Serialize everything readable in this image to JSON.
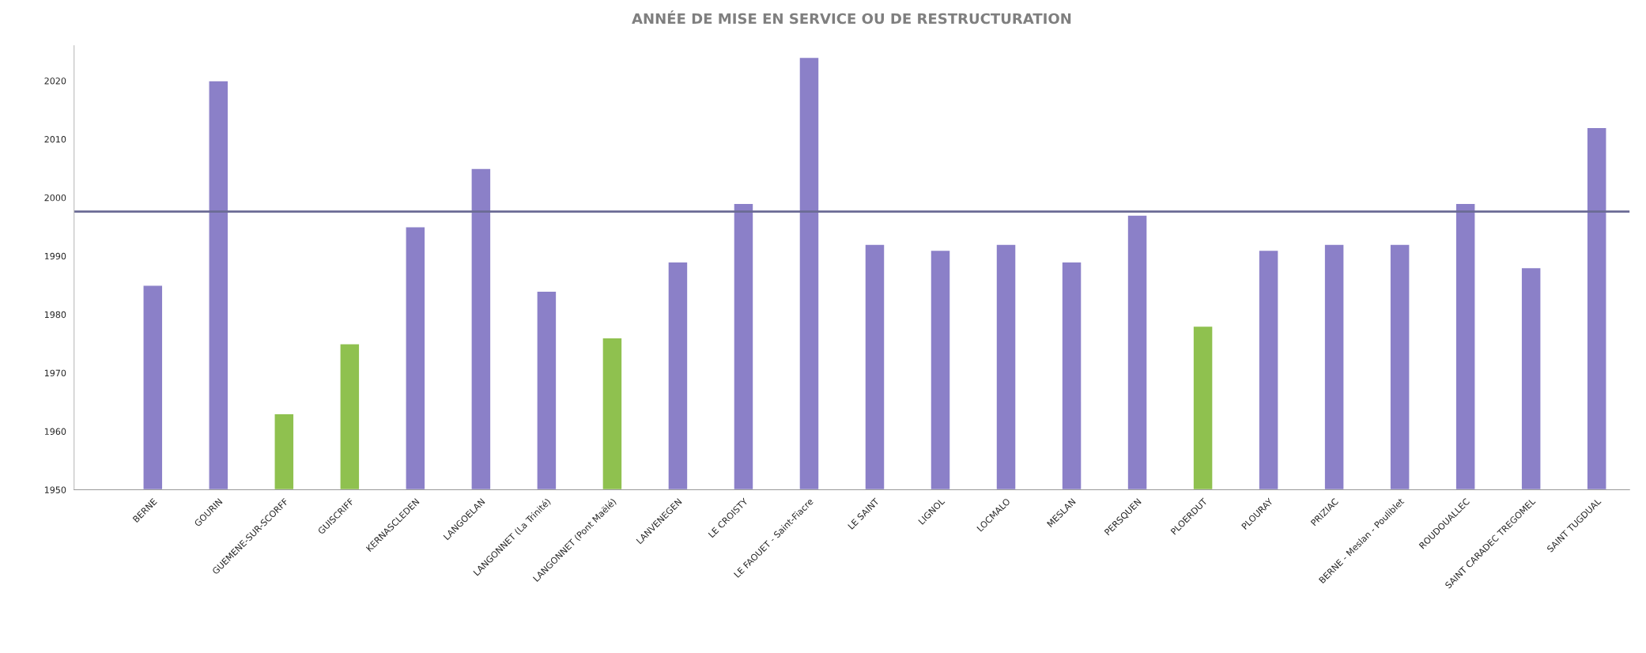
{
  "chart_data": {
    "type": "bar",
    "title": "ANNÉE DE MISE EN SERVICE OU DE RESTRUCTURATION",
    "categories": [
      "BERNE",
      "GOURIN",
      "GUEMENE-SUR-SCORFF",
      "GUISCRIFF",
      "KERNASCLEDEN",
      "LANGOELAN",
      "LANGONNET (La Trinité)",
      "LANGONNET (Pont Maëlé)",
      "LANVENEGEN",
      "LE CROISTY",
      "LE FAOUET - Saint-Fiacre",
      "LE SAINT",
      "LIGNOL",
      "LOCMALO",
      "MESLAN",
      "PERSQUEN",
      "PLOERDUT",
      "PLOURAY",
      "PRIZIAC",
      "BERNE - Meslan - Pouliblet",
      "ROUDOUALLEC",
      "SAINT CARADEC TREGOMEL",
      "SAINT TUGDUAL"
    ],
    "values": [
      1985,
      2020,
      1963,
      1975,
      1995,
      2005,
      1984,
      1976,
      1989,
      1999,
      2024,
      1992,
      1991,
      1992,
      1989,
      1997,
      1978,
      1991,
      1992,
      1992,
      1999,
      1988,
      2012
    ],
    "colors": [
      "#8b80c8",
      "#8b80c8",
      "#8fc14f",
      "#8fc14f",
      "#8b80c8",
      "#8b80c8",
      "#8b80c8",
      "#8fc14f",
      "#8b80c8",
      "#8b80c8",
      "#8b80c8",
      "#8b80c8",
      "#8b80c8",
      "#8b80c8",
      "#8b80c8",
      "#8b80c8",
      "#8fc14f",
      "#8b80c8",
      "#8b80c8",
      "#8b80c8",
      "#8b80c8",
      "#8b80c8",
      "#8b80c8"
    ],
    "ylim": [
      1950,
      2026
    ],
    "yticks": [
      1950,
      1960,
      1970,
      1980,
      1990,
      2000,
      2010,
      2020
    ],
    "ref_lines": [
      {
        "axis": "y",
        "value": 1997.6,
        "color": "#6b6b95"
      }
    ],
    "grid": false
  }
}
